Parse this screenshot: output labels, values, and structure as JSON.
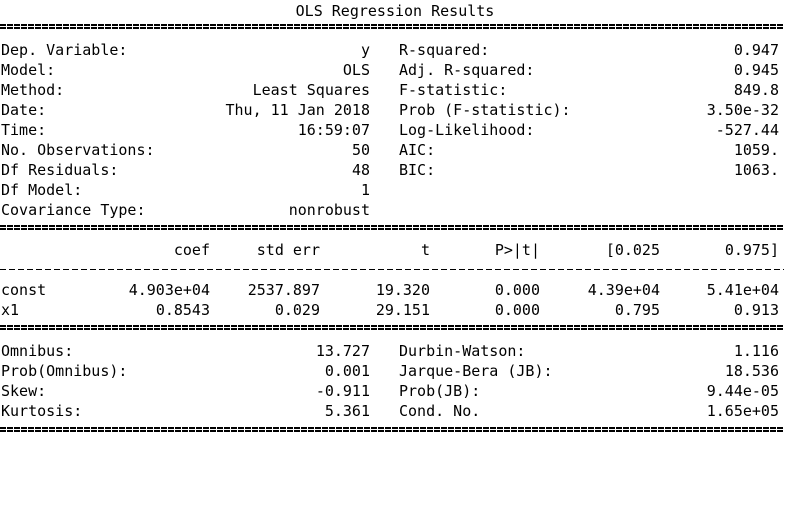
{
  "title": "OLS Regression Results",
  "info_left": [
    {
      "label": "Dep. Variable:",
      "value": "y"
    },
    {
      "label": "Model:",
      "value": "OLS"
    },
    {
      "label": "Method:",
      "value": "Least Squares"
    },
    {
      "label": "Date:",
      "value": "Thu, 11 Jan 2018"
    },
    {
      "label": "Time:",
      "value": "16:59:07"
    },
    {
      "label": "No. Observations:",
      "value": "50"
    },
    {
      "label": "Df Residuals:",
      "value": "48"
    },
    {
      "label": "Df Model:",
      "value": "1"
    },
    {
      "label": "Covariance Type:",
      "value": "nonrobust"
    }
  ],
  "info_right": [
    {
      "label": "R-squared:",
      "value": "0.947"
    },
    {
      "label": "Adj. R-squared:",
      "value": "0.945"
    },
    {
      "label": "F-statistic:",
      "value": "849.8"
    },
    {
      "label": "Prob (F-statistic):",
      "value": "3.50e-32"
    },
    {
      "label": "Log-Likelihood:",
      "value": "-527.44"
    },
    {
      "label": "AIC:",
      "value": "1059."
    },
    {
      "label": "BIC:",
      "value": "1063."
    }
  ],
  "coef_table": {
    "headers": [
      "coef",
      "std err",
      "t",
      "P>|t|",
      "[0.025",
      "0.975]"
    ],
    "rows": [
      {
        "name": "const",
        "values": [
          "4.903e+04",
          "2537.897",
          "19.320",
          "0.000",
          "4.39e+04",
          "5.41e+04"
        ]
      },
      {
        "name": "x1",
        "values": [
          "0.8543",
          "0.029",
          "29.151",
          "0.000",
          "0.795",
          "0.913"
        ]
      }
    ]
  },
  "diagnostics_left": [
    {
      "label": "Omnibus:",
      "value": "13.727"
    },
    {
      "label": "Prob(Omnibus):",
      "value": "0.001"
    },
    {
      "label": "Skew:",
      "value": "-0.911"
    },
    {
      "label": "Kurtosis:",
      "value": "5.361"
    }
  ],
  "diagnostics_right": [
    {
      "label": "Durbin-Watson:",
      "value": "1.116"
    },
    {
      "label": "Jarque-Bera (JB):",
      "value": "18.536"
    },
    {
      "label": "Prob(JB):",
      "value": "9.44e-05"
    },
    {
      "label": "Cond. No.",
      "value": "1.65e+05"
    }
  ]
}
